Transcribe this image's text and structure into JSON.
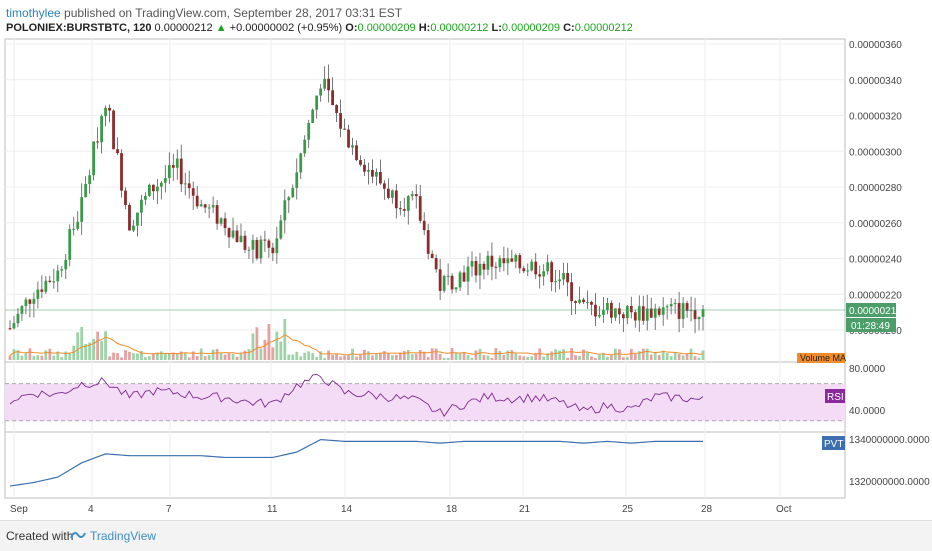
{
  "header": {
    "author": "timothylee",
    "published_text": "published on TradingView.com, September 28, 2017 03:31 EST",
    "symbol": "POLONIEX:BURSTBTC, 120",
    "last": "0.00000212",
    "change": "+0.00000002 (+0.95%)",
    "o_label": "O:",
    "o_value": "0.00000209",
    "h_label": "H:",
    "h_value": "0.00000212",
    "l_label": "L:",
    "l_value": "0.00000209",
    "c_label": "C:",
    "c_value": "0.00000212"
  },
  "colors": {
    "up": "#3a9a4a",
    "down": "#8e2a2a",
    "rsi_line": "#7a2a8a",
    "rsi_band": "#f4dcf7",
    "pvt_line": "#3d6fb0",
    "vol_ma": "#f28c28",
    "price_tag": "#4b9e6a"
  },
  "price_axis": {
    "labels": [
      "0.00000360",
      "0.00000340",
      "0.00000320",
      "0.00000300",
      "0.00000280",
      "0.00000260",
      "0.00000240",
      "0.00000220",
      "0.00000200"
    ],
    "current_price": "0.00000212",
    "countdown": "01:28:49"
  },
  "rsi_axis": {
    "labels": [
      "80.0000",
      "40.0000"
    ],
    "badge": "RSI"
  },
  "pvt_axis": {
    "labels": [
      "1340000000.0000",
      "1320000000.0000"
    ],
    "badge": "PVT"
  },
  "volume_badge": "Volume MA",
  "date_axis": {
    "labels": [
      "Sep",
      "4",
      "7",
      "11",
      "14",
      "18",
      "21",
      "25",
      "28",
      "Oct"
    ]
  },
  "footer": {
    "created_with": "Created with",
    "brand": "TradingView"
  },
  "chart_data": {
    "type": "candlestick",
    "title": "POLONIEX:BURSTBTC, 120",
    "x_label": "",
    "y_label": "",
    "y_range": [
      2e-06,
      3.6e-06
    ],
    "x": [
      "Sep 1",
      "Sep 2",
      "Sep 3",
      "Sep 3.5",
      "Sep 4",
      "Sep 4.5",
      "Sep 5",
      "Sep 6",
      "Sep 7",
      "Sep 8",
      "Sep 9",
      "Sep 10",
      "Sep 10.5",
      "Sep 11",
      "Sep 11.5",
      "Sep 12",
      "Sep 13",
      "Sep 14",
      "Sep 15",
      "Sep 16",
      "Sep 18",
      "Sep 19",
      "Sep 20",
      "Sep 21",
      "Sep 22",
      "Sep 23",
      "Sep 25",
      "Sep 26",
      "Sep 27",
      "Sep 28"
    ],
    "close": [
      2.01e-06,
      2.22e-06,
      2.32e-06,
      2.7e-06,
      3.3e-06,
      2.6e-06,
      2.8e-06,
      2.9e-06,
      2.7e-06,
      2.6e-06,
      2.45e-06,
      2.45e-06,
      2.9e-06,
      3.4e-06,
      3.1e-06,
      2.9e-06,
      2.75e-06,
      2.7e-06,
      2.25e-06,
      2.32e-06,
      2.38e-06,
      2.36e-06,
      2.36e-06,
      2.3e-06,
      2.12e-06,
      2.12e-06,
      2.09e-06,
      2.11e-06,
      2.11e-06,
      2.12e-06
    ],
    "rsi": [
      52,
      60,
      58,
      70,
      72,
      55,
      62,
      60,
      56,
      55,
      50,
      48,
      68,
      78,
      60,
      58,
      55,
      52,
      38,
      48,
      56,
      54,
      55,
      50,
      40,
      46,
      42,
      56,
      55,
      52
    ],
    "pvt": [
      1317000000,
      1319000000,
      1322000000,
      1330000000,
      1335000000,
      1334000000,
      1334000000,
      1334000000,
      1334000000,
      1333000000,
      1333000000,
      1333000000,
      1336000000,
      1343000000,
      1342000000,
      1342000000,
      1342000000,
      1342000000,
      1341000000,
      1342000000,
      1342000000,
      1342000000,
      1342000000,
      1342000000,
      1341000000,
      1342000000,
      1341000000,
      1342000000,
      1342000000,
      1342000000
    ]
  }
}
